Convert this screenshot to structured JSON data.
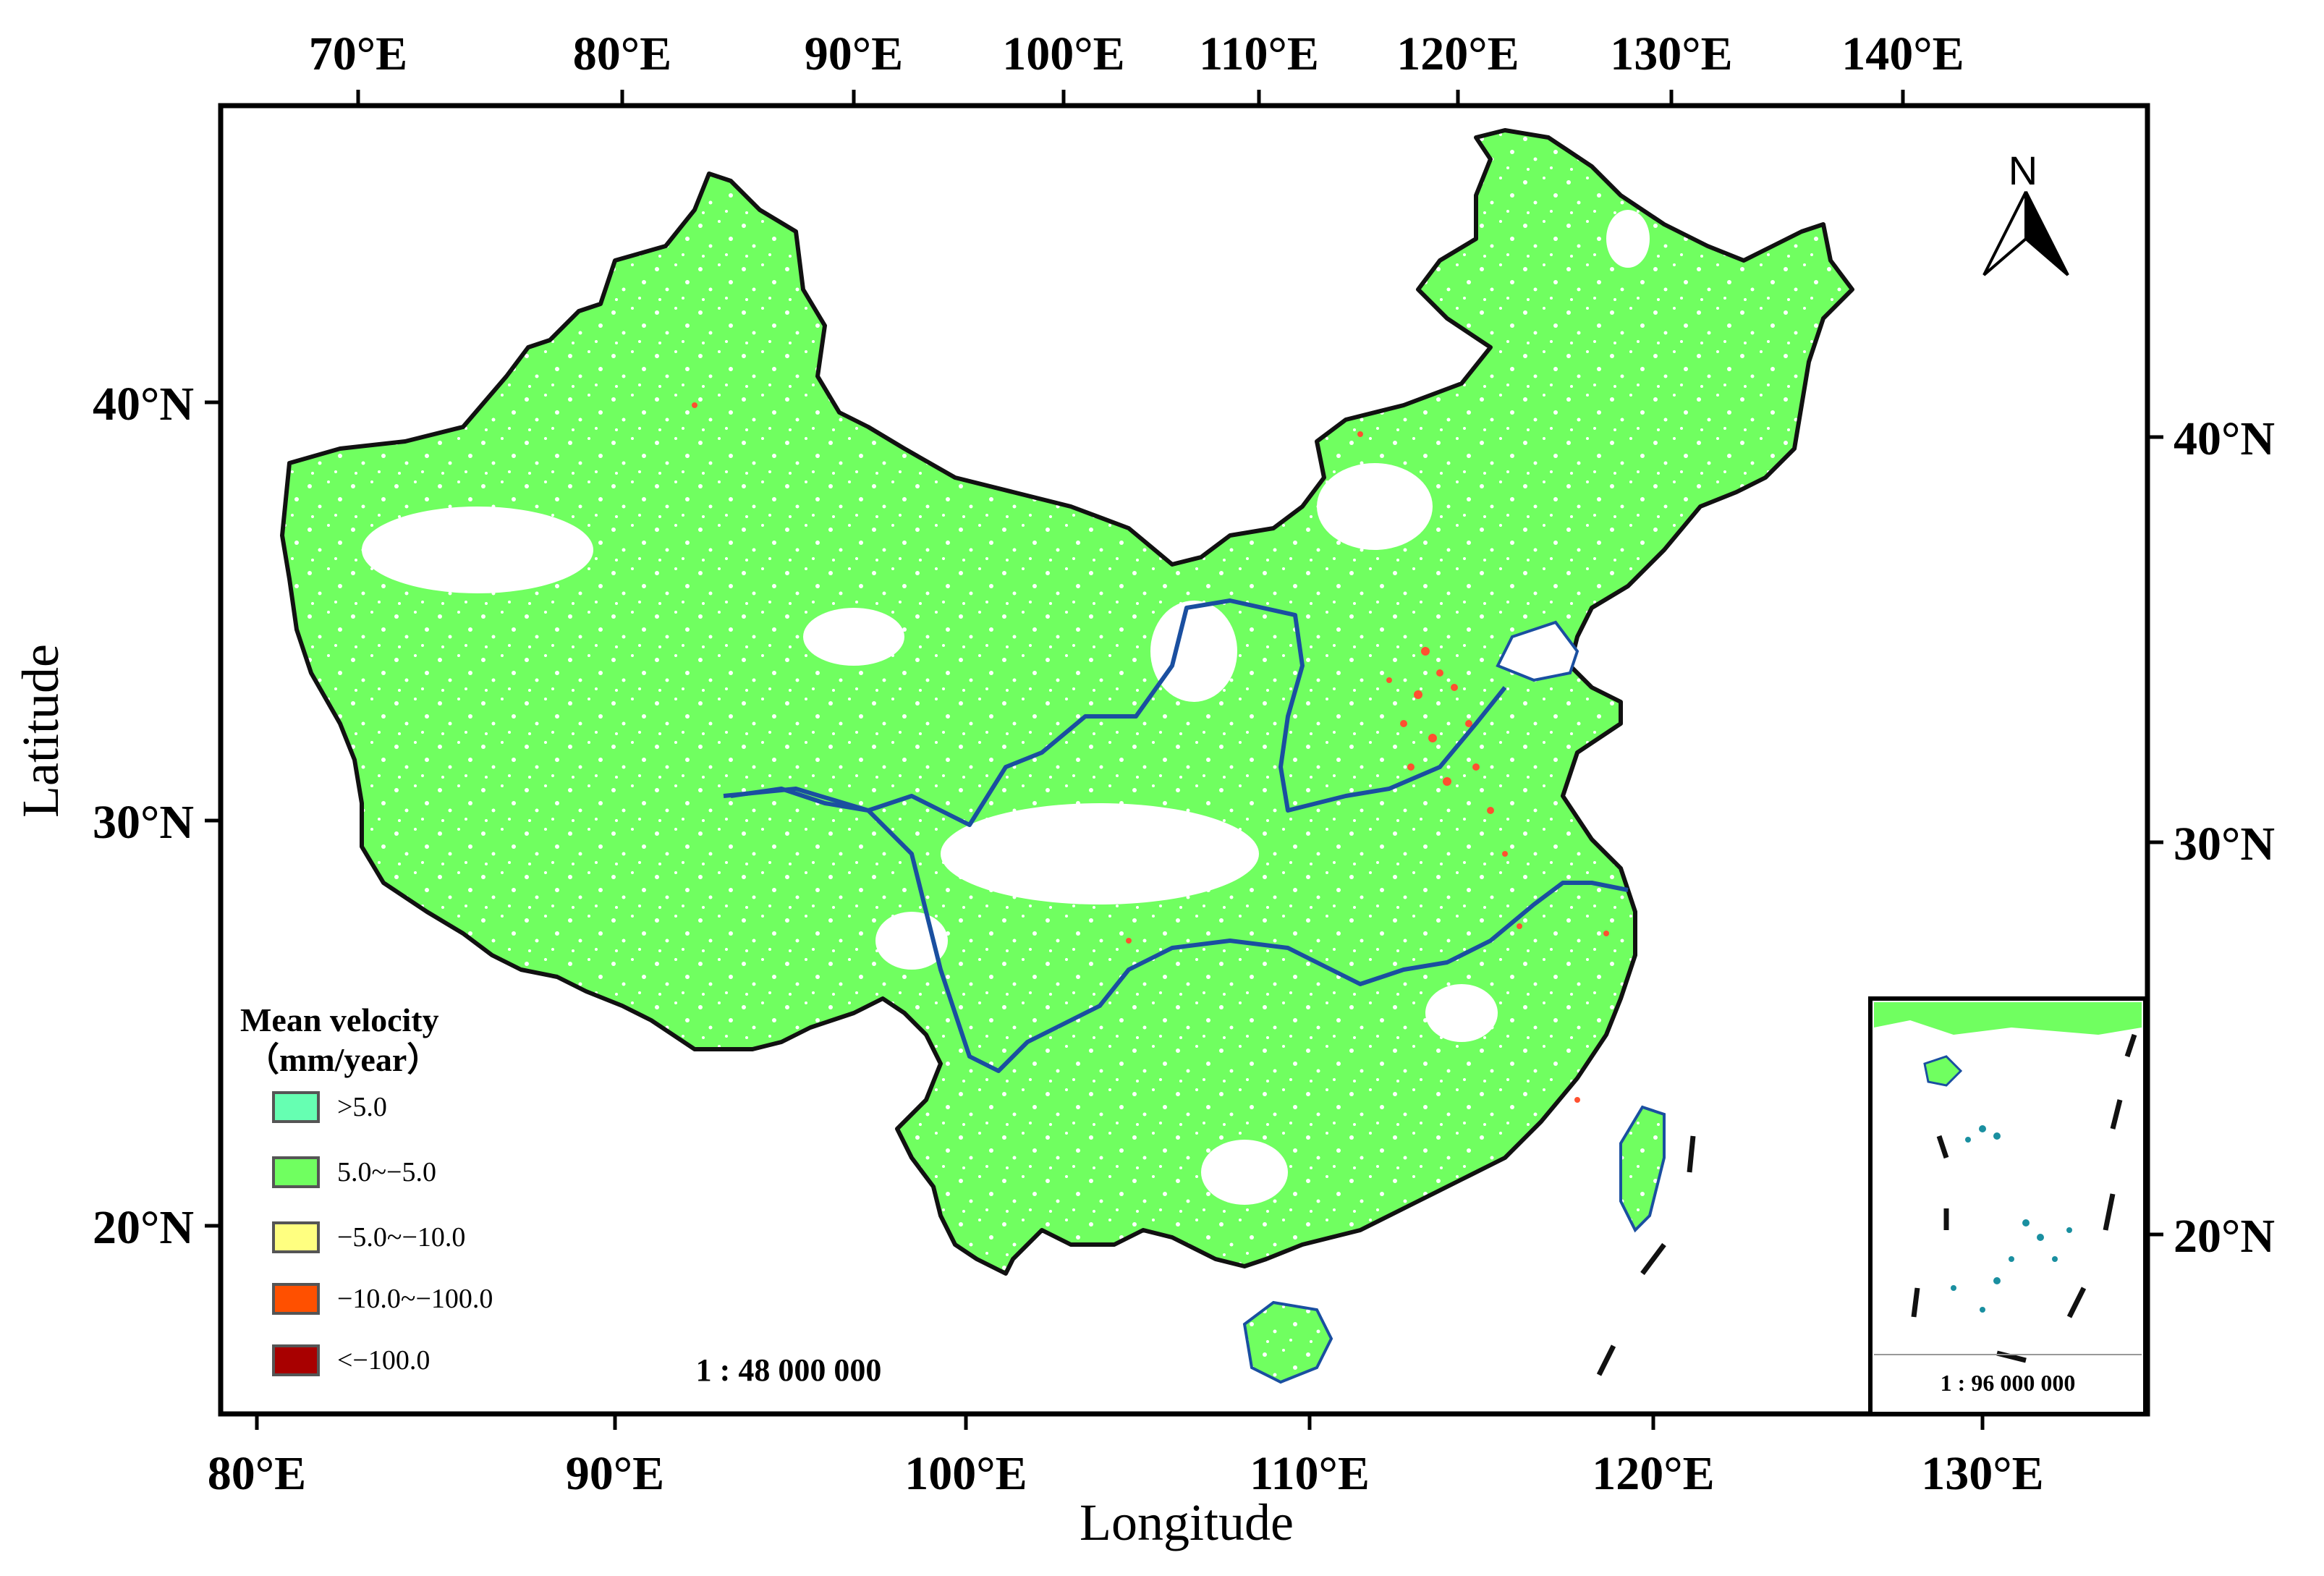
{
  "axes": {
    "top_ticks": [
      "70°E",
      "80°E",
      "90°E",
      "100°E",
      "110°E",
      "120°E",
      "130°E",
      "140°E"
    ],
    "bottom_ticks": [
      "80°E",
      "90°E",
      "100°E",
      "110°E",
      "120°E",
      "130°E"
    ],
    "left_ticks": [
      "40°N",
      "30°N",
      "20°N"
    ],
    "right_ticks": [
      "40°N",
      "30°N",
      "20°N"
    ],
    "x_label": "Longitude",
    "y_label": "Latitude"
  },
  "legend": {
    "title_line1": "Mean velocity",
    "title_line2": "（mm/year）",
    "items": [
      {
        "label": ">5.0",
        "color": "#66ffb2"
      },
      {
        "label": "5.0~−5.0",
        "color": "#70ff60"
      },
      {
        "label": "−5.0~−10.0",
        "color": "#ffff80"
      },
      {
        "label": "−10.0~−100.0",
        "color": "#ff5000"
      },
      {
        "label": "<−100.0",
        "color": "#a80000"
      }
    ]
  },
  "scale_main": "1 : 48 000 000",
  "scale_inset": "1 : 96 000 000",
  "north_arrow": {
    "label": "N",
    "icon": "north-arrow-icon"
  },
  "colors": {
    "land": "#70ff60",
    "subsidence": "#ff5030",
    "river": "#1a4fa0",
    "border": "#111111"
  }
}
